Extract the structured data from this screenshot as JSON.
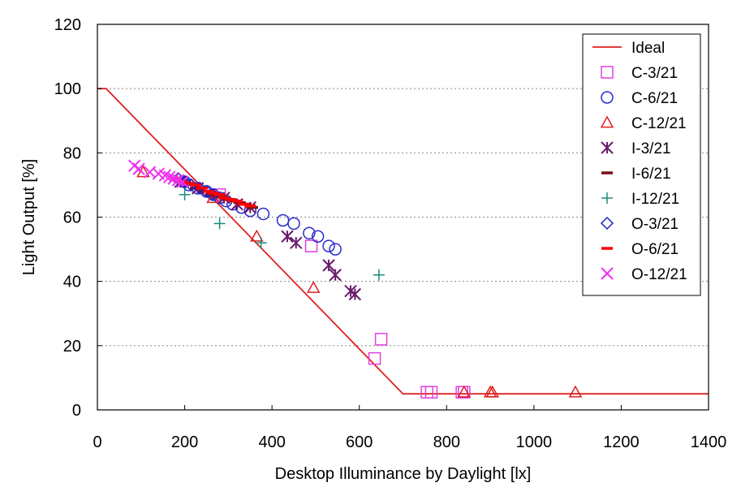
{
  "chart_data": {
    "type": "scatter",
    "title": "",
    "xlabel": "Desktop Illuminance by Daylight [lx]",
    "ylabel": "Light  Output [%]",
    "xlim": [
      0,
      1400
    ],
    "ylim": [
      0,
      120
    ],
    "xticks": [
      0,
      200,
      400,
      600,
      800,
      1000,
      1200,
      1400
    ],
    "yticks": [
      0,
      20,
      40,
      60,
      80,
      100,
      120
    ],
    "grid": "horizontal dotted",
    "legend_position": "right",
    "ideal": {
      "name": "Ideal",
      "color": "#e02020",
      "x": [
        0,
        20,
        700,
        1400
      ],
      "y": [
        100,
        100,
        5,
        5
      ]
    },
    "series": [
      {
        "name": "C-3/21",
        "marker": "square",
        "color": "#e040e0",
        "x": [
          280,
          490,
          635,
          650,
          755,
          765,
          835,
          840
        ],
        "y": [
          67,
          51,
          16,
          22,
          5.5,
          5.5,
          5.5,
          5.5
        ]
      },
      {
        "name": "C-6/21",
        "marker": "circle",
        "color": "#2a2ad0",
        "x": [
          200,
          210,
          230,
          250,
          265,
          280,
          295,
          310,
          330,
          350,
          380,
          425,
          450,
          485,
          505,
          530,
          545
        ],
        "y": [
          71,
          70,
          69,
          68,
          67,
          66,
          65,
          64,
          63,
          62,
          61,
          59,
          58,
          55,
          54,
          51,
          50
        ]
      },
      {
        "name": "C-12/21",
        "marker": "triangle",
        "color": "#e02020",
        "x": [
          105,
          265,
          365,
          495,
          840,
          900,
          905,
          1095
        ],
        "y": [
          74,
          66,
          54,
          38,
          5.5,
          5.5,
          5.5,
          5.5
        ]
      },
      {
        "name": "I-3/21",
        "marker": "asterisk",
        "color": "#6a1a6a",
        "x": [
          190,
          230,
          290,
          320,
          350,
          435,
          455,
          530,
          545,
          580,
          590
        ],
        "y": [
          71,
          69,
          66,
          64,
          63,
          54,
          52,
          45,
          42,
          37,
          36
        ]
      },
      {
        "name": "I-6/21",
        "marker": "dash",
        "color": "#7a1018",
        "x": [
          225,
          245,
          260,
          275,
          290,
          300,
          315,
          325,
          340,
          355
        ],
        "y": [
          69,
          68,
          67,
          66.5,
          66,
          65.5,
          65,
          64.5,
          64,
          63
        ]
      },
      {
        "name": "I-12/21",
        "marker": "plus",
        "color": "#1a8a7a",
        "x": [
          200,
          280,
          375,
          645
        ],
        "y": [
          67,
          58,
          52,
          42
        ]
      },
      {
        "name": "O-3/21",
        "marker": "diamond",
        "color": "#2020c0",
        "x": [
          185,
          200,
          215,
          235,
          250,
          265
        ],
        "y": [
          72,
          71,
          70,
          69,
          68,
          67
        ]
      },
      {
        "name": "O-6/21",
        "marker": "dash",
        "color": "#ff0000",
        "x": [
          180,
          195,
          210,
          225,
          240,
          255,
          265,
          280,
          290,
          305,
          320,
          335,
          350
        ],
        "y": [
          72,
          71,
          70.5,
          70,
          69,
          68,
          67.5,
          67,
          66,
          65.5,
          65,
          64,
          63.5
        ]
      },
      {
        "name": "O-12/21",
        "marker": "x",
        "color": "#f030f0",
        "x": [
          85,
          95,
          120,
          140,
          155,
          165,
          175,
          185,
          195
        ],
        "y": [
          76,
          75,
          74,
          73.5,
          73,
          72.5,
          72,
          71.5,
          71
        ]
      }
    ]
  }
}
